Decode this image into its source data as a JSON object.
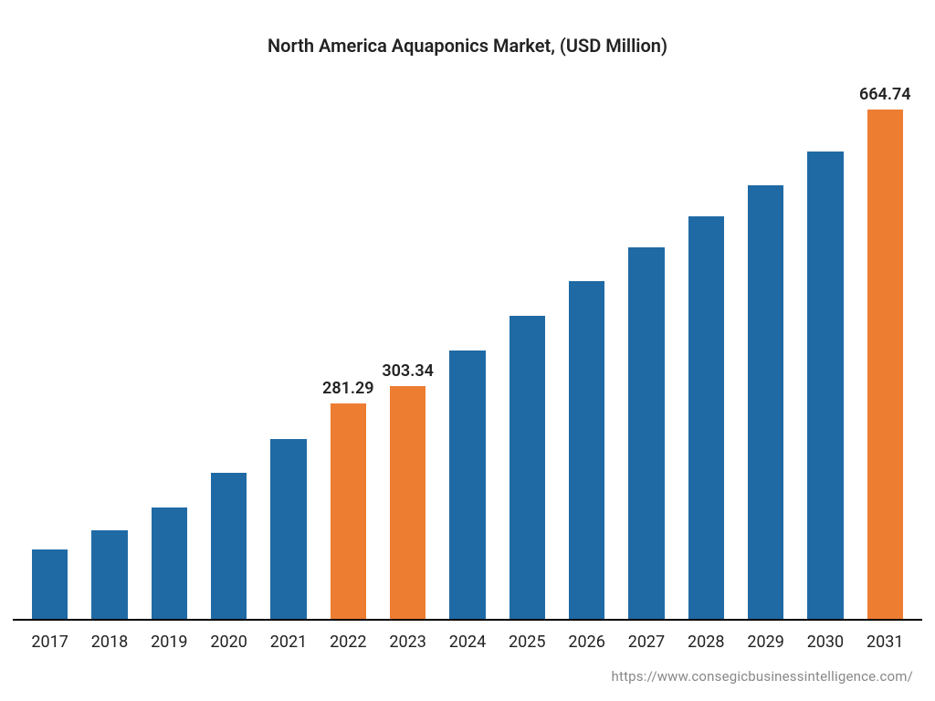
{
  "chart": {
    "type": "bar",
    "title": "North America Aquaponics Market, (USD Million)",
    "title_fontsize": 20,
    "title_color": "#222222",
    "background_color": "#ffffff",
    "axis_line_color": "#000000",
    "categories": [
      "2017",
      "2018",
      "2019",
      "2020",
      "2021",
      "2022",
      "2023",
      "2024",
      "2025",
      "2026",
      "2027",
      "2028",
      "2029",
      "2030",
      "2031"
    ],
    "values": [
      90,
      115,
      145,
      190,
      235,
      281.29,
      303.34,
      350,
      395,
      440,
      485,
      525,
      565,
      610,
      664.74
    ],
    "bar_colors": [
      "#1f6aa5",
      "#1f6aa5",
      "#1f6aa5",
      "#1f6aa5",
      "#1f6aa5",
      "#ed7d31",
      "#ed7d31",
      "#1f6aa5",
      "#1f6aa5",
      "#1f6aa5",
      "#1f6aa5",
      "#1f6aa5",
      "#1f6aa5",
      "#1f6aa5",
      "#ed7d31"
    ],
    "value_labels": [
      "",
      "",
      "",
      "",
      "",
      "281.29",
      "303.34",
      "",
      "",
      "",
      "",
      "",
      "",
      "",
      "664.74"
    ],
    "value_label_fontsize": 18,
    "value_label_color": "#222222",
    "xlabel_fontsize": 18,
    "xlabel_color": "#222222",
    "ylim": [
      0,
      700
    ],
    "bar_width_pct": 60
  },
  "source": {
    "text": "https://www.consegicbusinessintelligence.com/",
    "fontsize": 15,
    "color": "#888888"
  }
}
